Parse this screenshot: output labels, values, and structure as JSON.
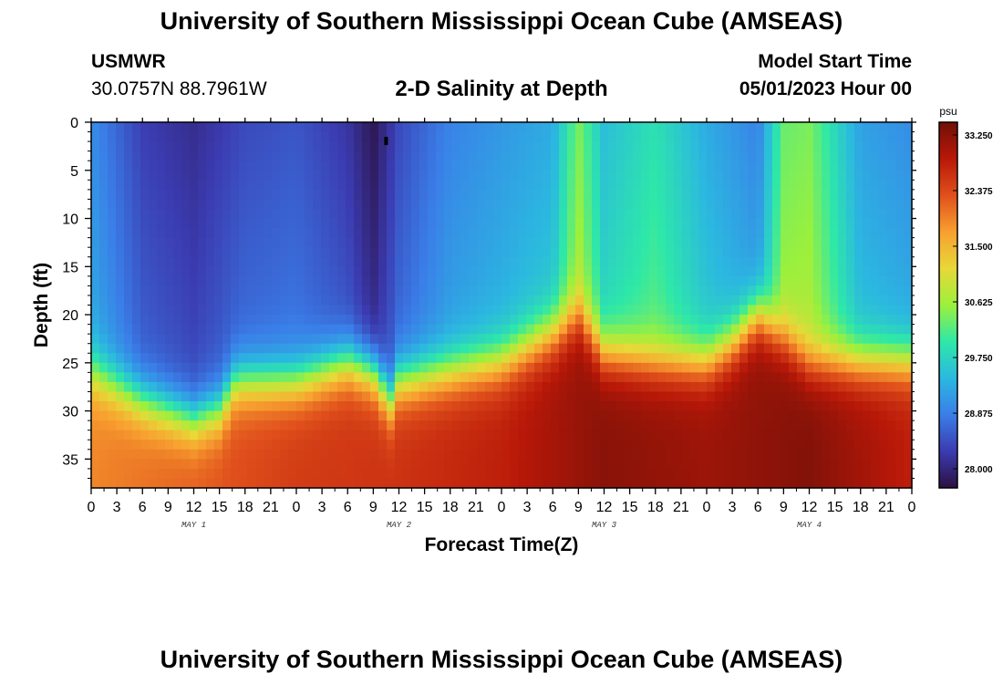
{
  "header": {
    "title": "University of Southern Mississippi Ocean Cube (AMSEAS)",
    "station": "USMWR",
    "coordinates": "30.0757N  88.7961W",
    "plot_title": "2-D Salinity at Depth",
    "start_label": "Model Start Time",
    "start_value": "05/01/2023 Hour 00"
  },
  "footer": {
    "title": "University of Southern Mississippi Ocean Cube (AMSEAS)"
  },
  "colors": {
    "colormap": [
      "#2b1040",
      "#3b3bb0",
      "#3a7ee8",
      "#2bb8e0",
      "#2ee8a8",
      "#9cf03c",
      "#e8d838",
      "#f8a030",
      "#e0501c",
      "#b81808",
      "#701008"
    ]
  },
  "chart_data": {
    "type": "heatmap",
    "title": "2-D Salinity at Depth",
    "xlabel": "Forecast Time(Z)",
    "ylabel": "Depth (ft)",
    "x_range_hours": [
      0,
      96
    ],
    "ylim": [
      0,
      38
    ],
    "x_tick_labels": [
      "0",
      "3",
      "6",
      "9",
      "12",
      "15",
      "18",
      "21",
      "0",
      "3",
      "6",
      "9",
      "12",
      "15",
      "18",
      "21",
      "0",
      "3",
      "6",
      "9",
      "12",
      "15",
      "18",
      "21",
      "0",
      "3",
      "6",
      "9",
      "12",
      "15",
      "18",
      "21",
      "0"
    ],
    "day_labels": [
      "MAY 1",
      "MAY 2",
      "MAY 3",
      "MAY 4"
    ],
    "y_ticks": [
      0,
      5,
      10,
      15,
      20,
      25,
      30,
      35
    ],
    "y_tick_labels": [
      "0",
      "5",
      "10",
      "15",
      "20",
      "25",
      "30",
      "35"
    ],
    "colorbar": {
      "unit": "psu",
      "range": [
        27.7,
        33.45
      ],
      "ticks": [
        33.25,
        32.375,
        31.5,
        30.625,
        29.75,
        28.875,
        28.0
      ],
      "tick_labels": [
        "33.250",
        "32.375",
        "31.500",
        "30.625",
        "29.750",
        "28.875",
        "28.000"
      ]
    },
    "surface_salinity_psu": {
      "hours": [
        0,
        6,
        12,
        18,
        24,
        30,
        33,
        36,
        42,
        48,
        54,
        57,
        60,
        66,
        72,
        78,
        81,
        84,
        90,
        96
      ],
      "values": [
        29.0,
        28.3,
        28.1,
        28.4,
        28.5,
        28.2,
        27.8,
        28.4,
        28.9,
        29.1,
        29.3,
        30.4,
        29.5,
        29.9,
        29.3,
        28.9,
        30.3,
        30.4,
        29.2,
        29.0
      ]
    },
    "deep_salinity_psu": {
      "hours": [
        0,
        12,
        24,
        36,
        48,
        60,
        72,
        84,
        96
      ],
      "values": [
        31.9,
        32.2,
        32.5,
        32.6,
        32.8,
        33.25,
        33.1,
        33.3,
        32.8
      ]
    },
    "halocline_depth_ft": {
      "hours": [
        0,
        6,
        12,
        15,
        17,
        24,
        30,
        33,
        35,
        36,
        42,
        48,
        54,
        57,
        60,
        66,
        72,
        75,
        78,
        84,
        87,
        96
      ],
      "values": [
        26,
        29,
        31,
        30,
        27,
        27,
        25,
        26,
        29,
        27,
        26,
        25,
        22,
        20,
        24,
        25,
        25,
        23,
        20,
        25,
        25,
        25
      ]
    },
    "marker": {
      "hour": 34.5,
      "depth_ft": 2
    }
  }
}
